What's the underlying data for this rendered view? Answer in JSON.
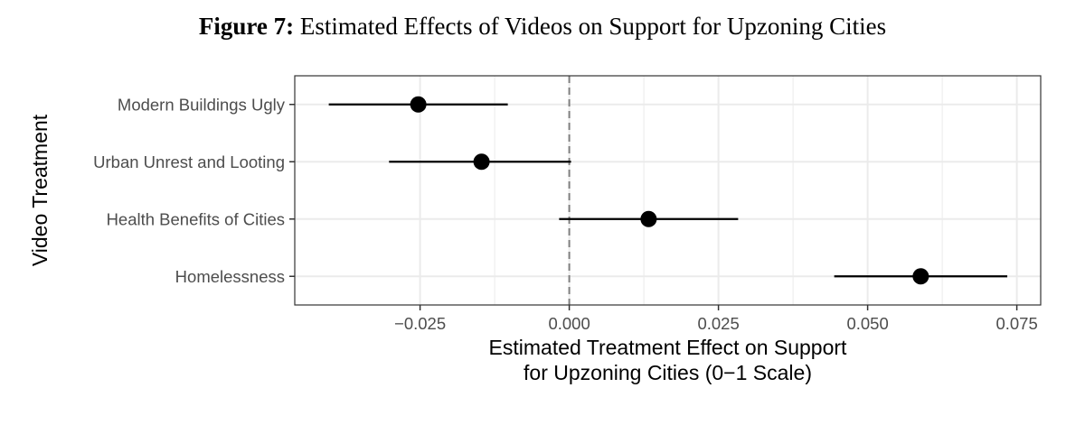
{
  "caption": {
    "label": "Figure 7:",
    "text": "Estimated Effects of Videos on Support for Upzoning Cities"
  },
  "chart_data": {
    "type": "scatter",
    "subtype": "coefficient-plot-with-intervals",
    "xlabel_lines": [
      "Estimated Treatment Effect on Support",
      "for Upzoning Cities (0−1 Scale)"
    ],
    "ylabel": "Video Treatment",
    "xlim": [
      -0.046,
      0.079
    ],
    "x_ticks": [
      -0.025,
      0.0,
      0.025,
      0.05,
      0.075
    ],
    "x_tick_labels": [
      "−0.025",
      "0.000",
      "0.025",
      "0.050",
      "0.075"
    ],
    "reference_line": 0,
    "grid": true,
    "colors": {
      "point": "#000000",
      "grid": "#ebebeb",
      "panel_border": "#333333",
      "reference": "#808080"
    },
    "categories": [
      "Modern Buildings Ugly",
      "Urban Unrest and Looting",
      "Health Benefits of Cities",
      "Homelessness"
    ],
    "estimates": [
      -0.0253,
      -0.0147,
      0.0133,
      0.0589
    ],
    "ci_low": [
      -0.0403,
      -0.0302,
      -0.0017,
      0.0444
    ],
    "ci_high": [
      -0.0103,
      0.0003,
      0.0283,
      0.0734
    ]
  }
}
